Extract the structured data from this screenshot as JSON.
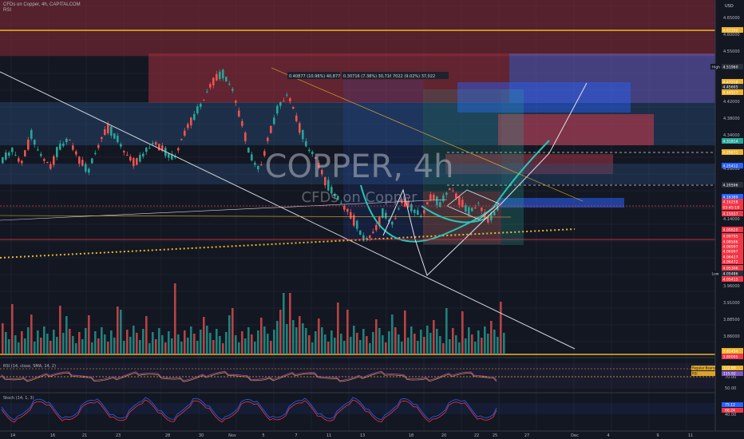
{
  "header": {
    "title": "CFDs on Copper, 4h, CAPITALCOM",
    "indicator": "RSI"
  },
  "watermark": {
    "symbol": "COPPER, 4h",
    "description": "CFDs on Copper"
  },
  "currency": "USD",
  "price_axis": {
    "ticks": [
      "4.65000",
      "4.60000",
      "4.55000",
      "4.50000",
      "4.46000",
      "4.42000",
      "4.38000",
      "4.34000",
      "4.30000",
      "4.26000",
      "4.22000",
      "4.18000",
      "4.14000",
      "4.10000",
      "4.06000",
      "4.00000",
      "3.96000",
      "3.91000",
      "3.88500",
      "3.86000",
      "3.83000"
    ],
    "labels": [
      {
        "text": "4.61590",
        "color": "#f0b429"
      },
      {
        "text": "High",
        "color": "#131722",
        "dark": true
      },
      {
        "text": "4.51960",
        "color": "#2a2e39"
      },
      {
        "text": "4.47218",
        "color": "#f0b429"
      },
      {
        "text": "4.45605",
        "color": "#2a2e39"
      },
      {
        "text": "4.44527",
        "color": "#f0b429"
      },
      {
        "text": "4.31814",
        "color": "#26a69a"
      },
      {
        "text": "4.29671",
        "color": "#f0b429"
      },
      {
        "text": "4.25412",
        "color": "#2962ff"
      },
      {
        "text": "4.20596",
        "color": "#2a2e39"
      },
      {
        "text": "4.16389",
        "color": "#2962ff"
      },
      {
        "text": "4.16258",
        "color": "#f23645"
      },
      {
        "text": "03:45:18",
        "color": "#f23645"
      },
      {
        "text": "4.15937",
        "color": "#f23645"
      },
      {
        "text": "4.09820",
        "color": "#f23645"
      },
      {
        "text": "4.09795",
        "color": "#f23645"
      },
      {
        "text": "4.08586",
        "color": "#f23645"
      },
      {
        "text": "4.06997",
        "color": "#f23645"
      },
      {
        "text": "4.06997",
        "color": "#f23645"
      },
      {
        "text": "4.06427",
        "color": "#f23645"
      },
      {
        "text": "4.06472",
        "color": "#f23645"
      },
      {
        "text": "4.05306",
        "color": "#f23645"
      },
      {
        "text": "Low",
        "color": "#131722",
        "dark": true
      },
      {
        "text": "4.05486",
        "color": "#2a2e39"
      },
      {
        "text": "4.05415",
        "color": "#f23645"
      }
    ],
    "vol_labels": [
      {
        "text": "3.81454",
        "color": "#f0b429"
      },
      {
        "text": "3.80095",
        "color": "#f23645"
      }
    ]
  },
  "rsi_panel": {
    "label": "RSI (14, close, SMA, 14, 2)",
    "ticks": [
      "70.00",
      "50.00"
    ],
    "tags": [
      {
        "text": "Regular Bearish",
        "value": "122.69"
      },
      {
        "text": "RSI",
        "value": "115.92"
      }
    ]
  },
  "stoch_panel": {
    "label": "Stoch (14, 1, 3)",
    "ticks": [
      "80.00",
      "40.00"
    ],
    "values": [
      "75.12",
      "68.24"
    ]
  },
  "time_axis": {
    "labels": [
      "14",
      "16",
      "21",
      "23",
      "28",
      "30",
      "Nov",
      "5",
      "7",
      "11",
      "13",
      "18",
      "20",
      "22",
      "25",
      "27",
      "Dec",
      "4",
      "9",
      "11"
    ]
  },
  "measurements": [
    {
      "text": "0.40877 (10.96%) 40,877"
    },
    {
      "text": "0.30716 (7.38%) 30,716"
    },
    {
      "text": "7022 (9.02%) 37,022"
    }
  ],
  "chart_data": {
    "type": "candlestick",
    "symbol": "COPPER",
    "timeframe": "4h",
    "ylim": [
      3.8,
      4.66
    ],
    "key_levels": [
      4.6159,
      4.5196,
      4.47218,
      4.44527,
      4.31814,
      4.29671,
      4.25412,
      4.20596,
      4.16389,
      4.16258,
      4.15937,
      4.0982,
      4.05486
    ],
    "price_path": [
      4.28,
      4.3,
      4.27,
      4.34,
      4.29,
      4.26,
      4.31,
      4.33,
      4.28,
      4.25,
      4.31,
      4.36,
      4.33,
      4.29,
      4.27,
      4.3,
      4.32,
      4.3,
      4.28,
      4.34,
      4.38,
      4.42,
      4.47,
      4.49,
      4.46,
      4.38,
      4.29,
      4.25,
      4.34,
      4.41,
      4.44,
      4.37,
      4.31,
      4.28,
      4.22,
      4.19,
      4.16,
      4.13,
      4.08,
      4.1,
      4.15,
      4.12,
      4.18,
      4.16,
      4.14,
      4.19,
      4.17,
      4.21,
      4.18,
      4.15,
      4.17,
      4.13,
      4.16
    ]
  }
}
